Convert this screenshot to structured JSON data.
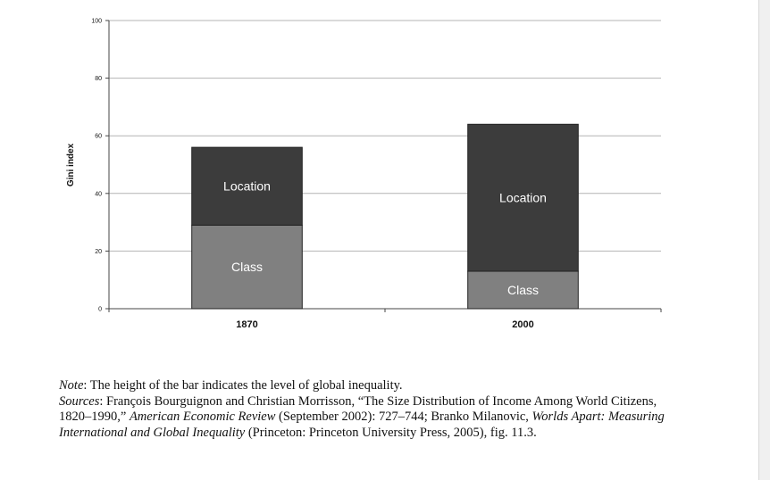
{
  "chart_data": {
    "type": "bar",
    "stacked": true,
    "categories": [
      "1870",
      "2000"
    ],
    "series": [
      {
        "name": "Class",
        "values": [
          29,
          13
        ],
        "color": "#808080"
      },
      {
        "name": "Location",
        "values": [
          27,
          51
        ],
        "color": "#3c3c3c"
      }
    ],
    "ylabel": "Gini index",
    "ylim": [
      0,
      100
    ],
    "yticks": [
      "0",
      "20",
      "40",
      "60",
      "80",
      "100"
    ],
    "grid": true
  },
  "notes": {
    "note_label": "Note",
    "note_text": ": The height of the bar indicates the level of global inequality.",
    "sources_label": "Sources",
    "sources_text_1": ": François Bourguignon and Christian Morrisson, “The Size Distribution of Income Among World Citizens, 1820–1990,”",
    "sources_journal": "American Economic Review",
    "sources_text_2": "(September 2002): 727–744; Branko Milanovic,",
    "sources_book": "Worlds Apart: Measuring International and Global Inequality",
    "sources_text_3": "(Princeton: Princeton University Press, 2005), fig. 11.3."
  }
}
